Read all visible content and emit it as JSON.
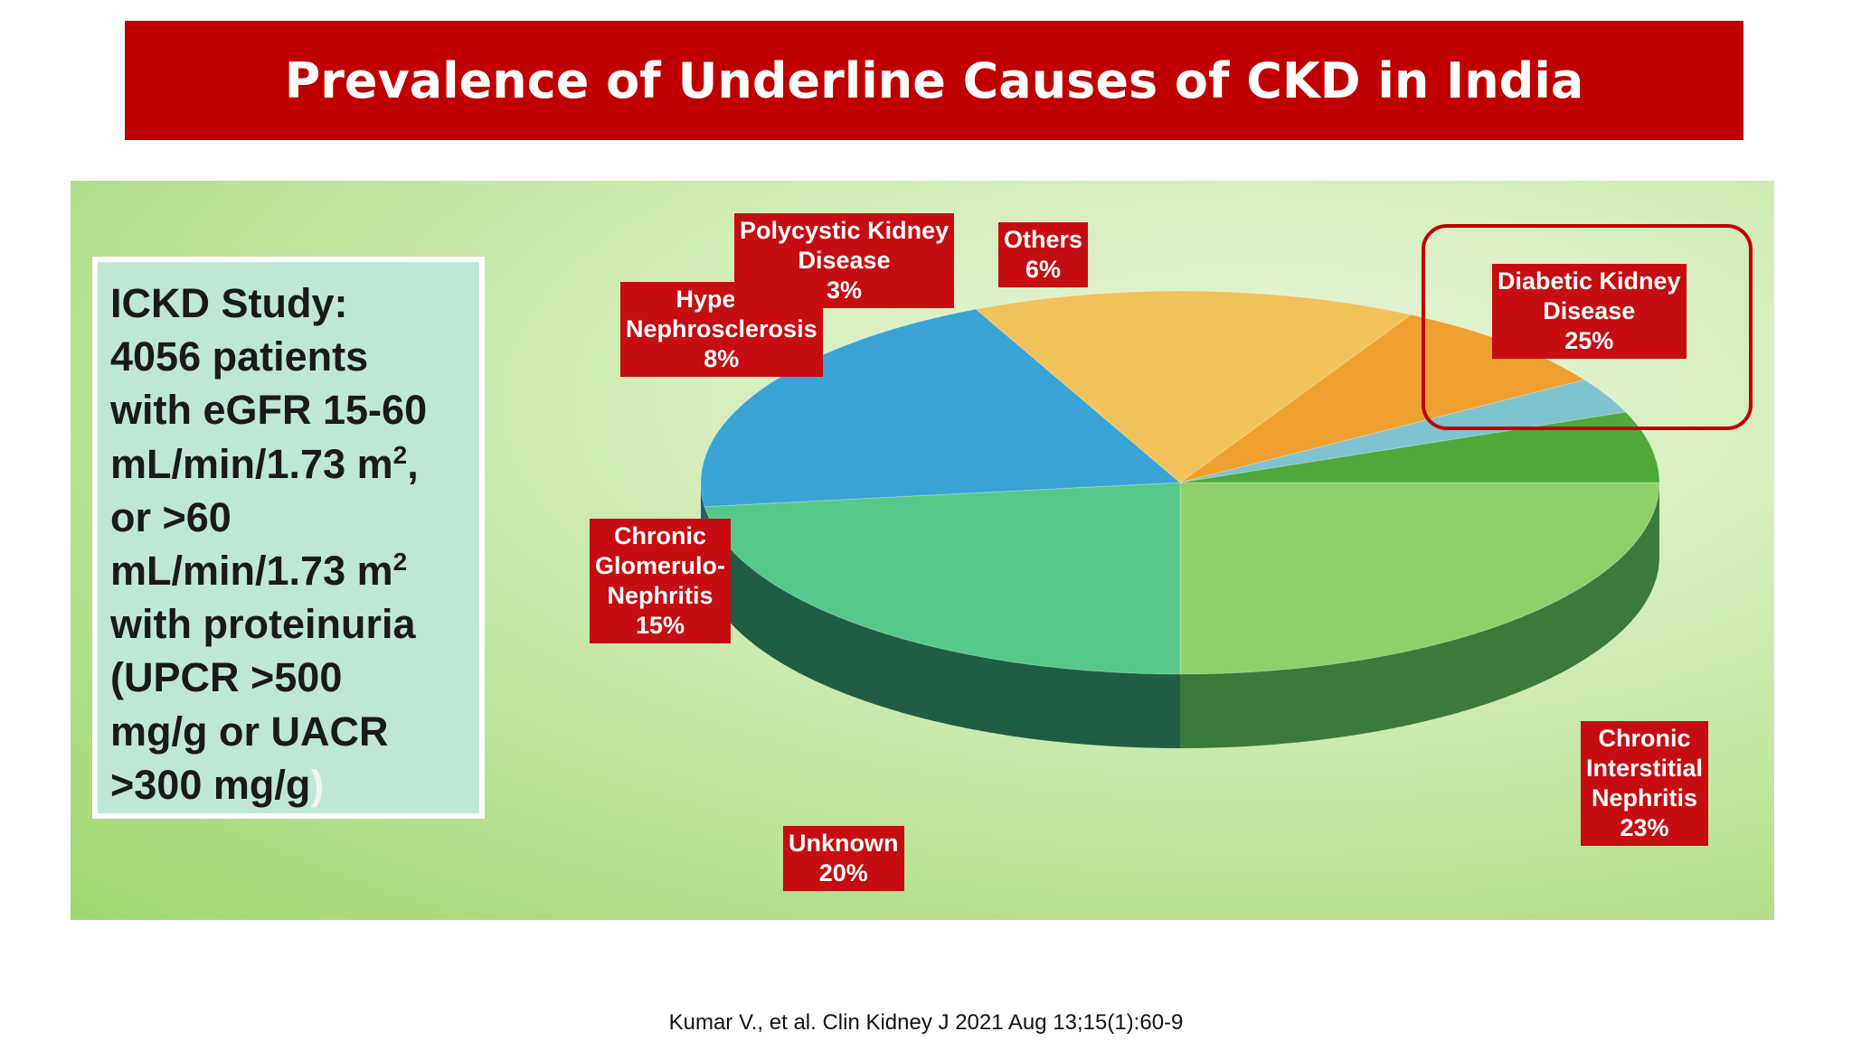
{
  "title": "Prevalence of Underline Causes of CKD in India",
  "study_box": {
    "lines": [
      {
        "text": "ICKD Study:"
      },
      {
        "text": "4056 patients"
      },
      {
        "text": "with eGFR 15-60"
      },
      {
        "text": "mL/min/1.73 m",
        "sup": "2",
        "after": ","
      },
      {
        "text": "or >60"
      },
      {
        "text": "mL/min/1.73 m",
        "sup": "2"
      },
      {
        "text": "with proteinuria"
      },
      {
        "text": "(UPCR >500"
      },
      {
        "text": "mg/g or UACR"
      },
      {
        "text": ">300 mg/g",
        "after": ")"
      }
    ]
  },
  "chart_data": {
    "type": "pie",
    "style": "3d-tilted",
    "start_angle_deg": 0,
    "direction": "clockwise",
    "slices": [
      {
        "label_lines": [
          "Diabetic Kidney",
          "Disease",
          "25%"
        ],
        "name": "Diabetic Kidney Disease",
        "value": 25,
        "color": "#8fd06a",
        "side": "#3b7a3a",
        "highlighted": true
      },
      {
        "label_lines": [
          "Chronic",
          "Interstitial",
          "Nephritis",
          "23%"
        ],
        "name": "Chronic Interstitial Nephritis",
        "value": 23,
        "color": "#55c98a",
        "side": "#1f5e45"
      },
      {
        "label_lines": [
          "Unknown",
          "20%"
        ],
        "name": "Unknown",
        "value": 20,
        "color": "#3aa3d6",
        "side": "#1c5e86"
      },
      {
        "label_lines": [
          "Chronic",
          "Glomerulo-",
          "Nephritis",
          "15%"
        ],
        "name": "Chronic Glomerulo-Nephritis",
        "value": 15,
        "color": "#f1c25a",
        "side": "#a37a1c"
      },
      {
        "label_lines": [
          "Hyperte",
          "Nephrosclerosis",
          "8%"
        ],
        "name": "Hypertensive Nephrosclerosis",
        "value": 8,
        "color": "#f0a030",
        "side": "#a56514"
      },
      {
        "label_lines": [
          "Polycystic Kidney",
          "Disease",
          "3%"
        ],
        "name": "Polycystic Kidney Disease",
        "value": 3,
        "color": "#7ec3d0",
        "side": "#3f7e88"
      },
      {
        "label_lines": [
          "Others",
          "6%"
        ],
        "name": "Others",
        "value": 6,
        "color": "#4ea83a",
        "side": "#24621c"
      }
    ],
    "label_color": "#c50d12"
  },
  "citation": "Kumar V., et al. Clin Kidney J 2021 Aug 13;15(1):60-9"
}
